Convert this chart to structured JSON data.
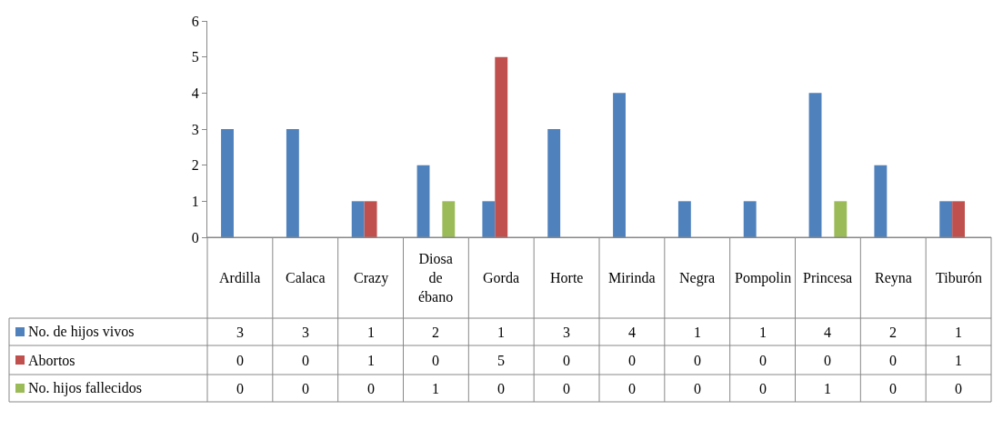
{
  "chart_data": {
    "type": "bar",
    "categories": [
      "Ardilla",
      "Calaca",
      "Crazy",
      "Diosa de ébano",
      "Gorda",
      "Horte",
      "Mirinda",
      "Negra",
      "Pompolin",
      "Princesa",
      "Reyna",
      "Tiburón"
    ],
    "series": [
      {
        "name": "No. de hijos vivos",
        "color": "#4f81bd",
        "values": [
          3,
          3,
          1,
          2,
          1,
          3,
          4,
          1,
          1,
          4,
          2,
          1
        ]
      },
      {
        "name": "Abortos",
        "color": "#c0504d",
        "values": [
          0,
          0,
          1,
          0,
          5,
          0,
          0,
          0,
          0,
          0,
          0,
          1
        ]
      },
      {
        "name": "No. hijos fallecidos",
        "color": "#9bbb59",
        "values": [
          0,
          0,
          0,
          1,
          0,
          0,
          0,
          0,
          0,
          1,
          0,
          0
        ]
      }
    ],
    "ylim": [
      0,
      6
    ],
    "yticks": [
      0,
      1,
      2,
      3,
      4,
      5,
      6
    ],
    "legend": "left",
    "data_labels": true
  }
}
